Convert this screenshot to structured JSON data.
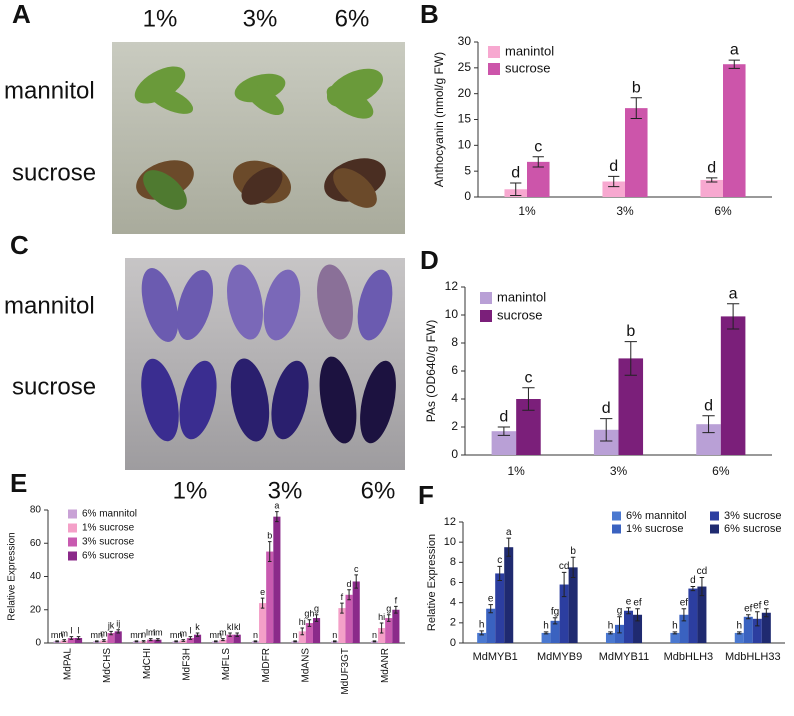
{
  "figure": {
    "panel_labels": [
      "A",
      "B",
      "C",
      "D",
      "E",
      "F"
    ],
    "photo_a": {
      "concentrations": [
        "1%",
        "3%",
        "6%"
      ],
      "rows": [
        "mannitol",
        "sucrose"
      ]
    },
    "photo_c": {
      "concentrations": [
        "1%",
        "3%",
        "6%"
      ],
      "rows": [
        "mannitol",
        "sucrose"
      ]
    }
  },
  "chart_data": [
    {
      "type": "bar",
      "y_label": "Anthocyanin (nmol/g FW)",
      "categories": [
        "1%",
        "3%",
        "6%"
      ],
      "series": [
        {
          "name": "manintol",
          "color": "#f7a8d0",
          "values": [
            1.5,
            3,
            3.3
          ],
          "errors": [
            1.2,
            1,
            0.4
          ],
          "letters": [
            "d",
            "d",
            "d"
          ]
        },
        {
          "name": "sucrose",
          "color": "#cc55aa",
          "values": [
            6.8,
            17.2,
            25.7
          ],
          "errors": [
            1,
            2,
            0.8
          ],
          "letters": [
            "c",
            "b",
            "a"
          ]
        }
      ],
      "ylim": [
        0,
        30
      ],
      "yticks": [
        0,
        5,
        10,
        15,
        20,
        25,
        30
      ],
      "legend": "top-left"
    },
    {
      "type": "bar",
      "y_label": "PAs (OD640/g FW)",
      "categories": [
        "1%",
        "3%",
        "6%"
      ],
      "series": [
        {
          "name": "manintol",
          "color": "#b9a0d6",
          "values": [
            1.7,
            1.8,
            2.2
          ],
          "errors": [
            0.3,
            0.8,
            0.6
          ],
          "letters": [
            "d",
            "d",
            "d"
          ]
        },
        {
          "name": "sucrose",
          "color": "#7b1f7a",
          "values": [
            4,
            6.9,
            9.9
          ],
          "errors": [
            0.8,
            1.2,
            0.9
          ],
          "letters": [
            "c",
            "b",
            "a"
          ]
        }
      ],
      "ylim": [
        0,
        12
      ],
      "yticks": [
        0,
        2,
        4,
        6,
        8,
        10,
        12
      ],
      "legend": "top-left"
    },
    {
      "type": "bar",
      "y_label": "Relative Expression",
      "categories": [
        "MdPAL",
        "MdCHS",
        "MdCHI",
        "MdF3H",
        "MdFLS",
        "MdDFR",
        "MdANS",
        "MdUF3GT",
        "MdANR"
      ],
      "series": [
        {
          "name": "6% mannitol",
          "color": "#c9a2d6",
          "values": [
            1,
            1,
            1,
            1,
            1,
            1,
            1,
            1,
            1
          ],
          "errors": [
            0.3,
            0.3,
            0.3,
            0.3,
            0.3,
            0.3,
            0.3,
            0.3,
            0.3
          ],
          "letters": [
            "mn",
            "mn",
            "mn",
            "mn",
            "mn",
            "n",
            "n",
            "n",
            "n"
          ]
        },
        {
          "name": "1% sucrose",
          "color": "#f4a0c8",
          "values": [
            1.5,
            1.5,
            1,
            1.5,
            2,
            24,
            7,
            21,
            9
          ],
          "errors": [
            0.5,
            0.5,
            0.4,
            0.5,
            0.6,
            3,
            2,
            3,
            3
          ],
          "letters": [
            "m",
            "m",
            "n",
            "m",
            "m",
            "e",
            "hi",
            "f",
            "hi"
          ]
        },
        {
          "name": "3% sucrose",
          "color": "#c85ab0",
          "values": [
            3,
            6,
            2,
            3,
            5,
            55,
            12,
            29,
            15
          ],
          "errors": [
            0.8,
            1,
            0.6,
            0.8,
            1,
            6,
            2,
            3,
            2
          ],
          "letters": [
            "l",
            "jk",
            "lm",
            "l",
            "kl",
            "b",
            "gh",
            "d",
            "g"
          ]
        },
        {
          "name": "6% sucrose",
          "color": "#8b2a8a",
          "values": [
            3,
            7,
            2,
            5,
            5,
            76,
            15,
            37,
            20
          ],
          "errors": [
            0.8,
            1,
            0.6,
            1,
            1,
            3,
            2,
            4,
            2
          ],
          "letters": [
            "l",
            "ij",
            "lm",
            "k",
            "kl",
            "a",
            "g",
            "c",
            "f"
          ]
        }
      ],
      "ylim": [
        0,
        80
      ],
      "yticks": [
        0,
        20,
        40,
        60,
        80
      ],
      "legend": "top-left"
    },
    {
      "type": "bar",
      "y_label": "Relative Expression",
      "categories": [
        "MdMYB1",
        "MdMYB9",
        "MdMYB11",
        "MdbHLH3",
        "MdbHLH33"
      ],
      "series": [
        {
          "name": "6% mannitol",
          "color": "#4a78d0",
          "values": [
            1,
            1,
            1,
            1,
            1
          ],
          "errors": [
            0.2,
            0.1,
            0.1,
            0.1,
            0.1
          ],
          "letters": [
            "h",
            "h",
            "h",
            "h",
            "h"
          ]
        },
        {
          "name": "1% sucrose",
          "color": "#3a62c0",
          "values": [
            3.4,
            2.2,
            1.8,
            2.8,
            2.6
          ],
          "errors": [
            0.4,
            0.3,
            0.8,
            0.6,
            0.2
          ],
          "letters": [
            "e",
            "fg",
            "g",
            "ef",
            "ef"
          ]
        },
        {
          "name": "3% sucrose",
          "color": "#2c3ea0",
          "values": [
            6.9,
            5.8,
            3.2,
            5.4,
            2.4
          ],
          "errors": [
            0.7,
            1.2,
            0.3,
            0.2,
            0.7
          ],
          "letters": [
            "c",
            "cd",
            "e",
            "d",
            "ef"
          ]
        },
        {
          "name": "6% sucrose",
          "color": "#1f2a70",
          "values": [
            9.5,
            7.5,
            2.8,
            5.6,
            3
          ],
          "errors": [
            0.9,
            1,
            0.6,
            0.9,
            0.4
          ],
          "letters": [
            "a",
            "b",
            "ef",
            "cd",
            "e"
          ]
        }
      ],
      "ylim": [
        0,
        12
      ],
      "yticks": [
        0,
        2,
        4,
        6,
        8,
        10,
        12
      ],
      "legend": "top-right"
    }
  ]
}
